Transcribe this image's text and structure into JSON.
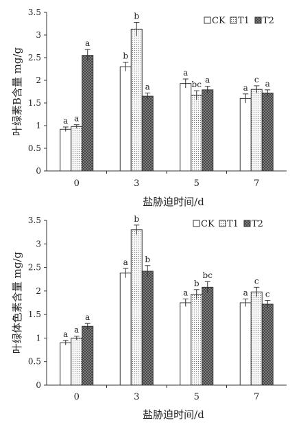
{
  "chart_data": [
    {
      "type": "bar",
      "ylabel": "叶绿素B含量 mg/g",
      "xlabel": "盐胁迫时间/d",
      "categories": [
        "0",
        "3",
        "5",
        "7"
      ],
      "yticks": [
        "0",
        "0.5",
        "1",
        "1.5",
        "2",
        "2.5",
        "3",
        "3.5"
      ],
      "ylim": [
        0,
        3.5
      ],
      "grid": false,
      "legend_position": "top-right",
      "series": [
        {
          "name": "CK",
          "values": [
            0.92,
            2.3,
            1.93,
            1.6
          ],
          "errors": [
            0.05,
            0.1,
            0.1,
            0.1
          ],
          "labels": [
            "a",
            "b",
            "a",
            "a"
          ]
        },
        {
          "name": "T1",
          "values": [
            0.98,
            3.13,
            1.67,
            1.8
          ],
          "errors": [
            0.04,
            0.15,
            0.1,
            0.08
          ],
          "labels": [
            "a",
            "b",
            "bc",
            "c"
          ]
        },
        {
          "name": "T2",
          "values": [
            2.55,
            1.65,
            1.79,
            1.72
          ],
          "errors": [
            0.13,
            0.07,
            0.08,
            0.07
          ],
          "labels": [
            "a",
            "a",
            "a",
            "a"
          ]
        }
      ]
    },
    {
      "type": "bar",
      "ylabel": "叶绿体色素含量 mg/g",
      "xlabel": "盐胁迫时间/d",
      "categories": [
        "0",
        "3",
        "5",
        "7"
      ],
      "yticks": [
        "0",
        "0.5",
        "1",
        "1.5",
        "2",
        "2.5",
        "3",
        "3.5"
      ],
      "ylim": [
        0,
        3.5
      ],
      "grid": false,
      "legend_position": "top-right",
      "series": [
        {
          "name": "CK",
          "values": [
            0.9,
            2.38,
            1.75,
            1.75
          ],
          "errors": [
            0.05,
            0.1,
            0.08,
            0.08
          ],
          "labels": [
            "a",
            "a",
            "a",
            "a"
          ]
        },
        {
          "name": "T1",
          "values": [
            1.0,
            3.3,
            1.93,
            1.98
          ],
          "errors": [
            0.04,
            0.1,
            0.1,
            0.1
          ],
          "labels": [
            "a",
            "b",
            "b",
            "c"
          ]
        },
        {
          "name": "T2",
          "values": [
            1.25,
            2.42,
            2.08,
            1.72
          ],
          "errors": [
            0.06,
            0.12,
            0.12,
            0.08
          ],
          "labels": [
            "a",
            "b",
            "bc",
            "c"
          ]
        }
      ]
    }
  ],
  "colors": {
    "axis": "#333333",
    "ck_fill": "#ffffff",
    "t1_fill": "#f2f2f2",
    "t2_fill": "#7a7a7a",
    "stroke": "#333333"
  }
}
